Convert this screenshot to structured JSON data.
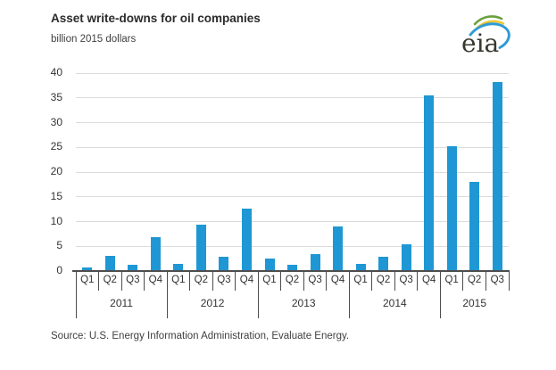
{
  "header": {
    "logo_text": "eia"
  },
  "chart_data": {
    "type": "bar",
    "title": "Asset write-downs for oil companies",
    "unit_label": "billion 2015 dollars",
    "quarters": [
      "Q1",
      "Q2",
      "Q3",
      "Q4",
      "Q1",
      "Q2",
      "Q3",
      "Q4",
      "Q1",
      "Q2",
      "Q3",
      "Q4",
      "Q1",
      "Q2",
      "Q3",
      "Q4",
      "Q1",
      "Q2",
      "Q3"
    ],
    "year_groups": [
      {
        "label": "2011",
        "quarters": 4
      },
      {
        "label": "2012",
        "quarters": 4
      },
      {
        "label": "2013",
        "quarters": 4
      },
      {
        "label": "2014",
        "quarters": 4
      },
      {
        "label": "2015",
        "quarters": 3
      }
    ],
    "categories": [
      "Q1 2011",
      "Q2 2011",
      "Q3 2011",
      "Q4 2011",
      "Q1 2012",
      "Q2 2012",
      "Q3 2012",
      "Q4 2012",
      "Q1 2013",
      "Q2 2013",
      "Q3 2013",
      "Q4 2013",
      "Q1 2014",
      "Q2 2014",
      "Q3 2014",
      "Q4 2014",
      "Q1 2015",
      "Q2 2015",
      "Q3 2015"
    ],
    "values": [
      0.8,
      3.1,
      1.3,
      6.8,
      1.5,
      9.4,
      2.9,
      12.6,
      2.5,
      1.3,
      3.4,
      9.1,
      1.4,
      2.9,
      5.4,
      35.5,
      25.2,
      18.0,
      38.2
    ],
    "ylim": [
      0,
      40
    ],
    "yticks": [
      0,
      5,
      10,
      15,
      20,
      25,
      30,
      35,
      40
    ],
    "grid": true,
    "legend": false
  },
  "source_note": "Source:  U.S. Energy Information Administration, Evaluate Energy.",
  "colors": {
    "bar": "#1e97d4",
    "grid": "#dcdcdc",
    "axis": "#4d4d4d",
    "title_text": "#2b2b2b",
    "body_text": "#3f3f3f",
    "logo_green": "#69a23a",
    "logo_yellow": "#ebc832",
    "logo_blue": "#2e9bd6",
    "logo_text": "#38382e"
  }
}
